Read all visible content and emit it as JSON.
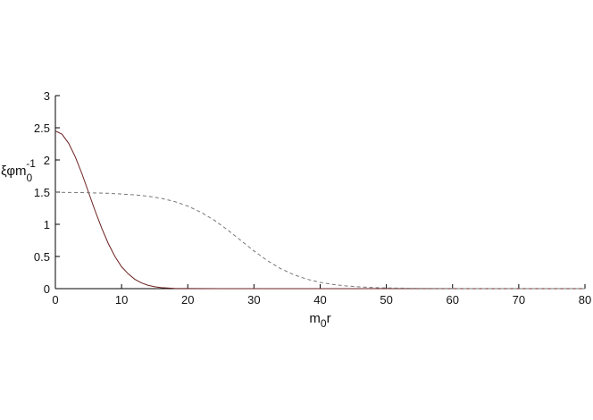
{
  "chart_data": {
    "type": "line",
    "xlabel": {
      "main": "m",
      "sub": "0",
      "tail": "r"
    },
    "ylabel": {
      "main": "ξφm",
      "sub": "0",
      "sup": "-1"
    },
    "xlim": [
      0,
      80
    ],
    "ylim": [
      0,
      3
    ],
    "xticks": [
      0,
      10,
      20,
      30,
      40,
      50,
      60,
      70,
      80
    ],
    "yticks": [
      0,
      0.5,
      1,
      1.5,
      2,
      2.5,
      3
    ],
    "series": [
      {
        "color": "#6b1f1f",
        "dash": false,
        "x": [
          0,
          1,
          2,
          3,
          4,
          5,
          6,
          7,
          8,
          9,
          10,
          11,
          12,
          13,
          14,
          15,
          16,
          18,
          20,
          25,
          30,
          40,
          50,
          60,
          70,
          80
        ],
        "values": [
          2.45,
          2.4,
          2.26,
          2.05,
          1.79,
          1.5,
          1.21,
          0.94,
          0.7,
          0.5,
          0.34,
          0.23,
          0.145,
          0.089,
          0.052,
          0.029,
          0.015,
          0.0043,
          0.001,
          0,
          0,
          0,
          0,
          0,
          0,
          0
        ]
      },
      {
        "color": "#777777",
        "dash": true,
        "x": [
          0,
          4,
          8,
          12,
          14,
          16,
          18,
          20,
          22,
          24,
          26,
          28,
          30,
          32,
          34,
          36,
          38,
          40,
          42,
          44,
          46,
          48,
          50,
          55,
          60,
          65,
          70,
          80
        ],
        "values": [
          1.497,
          1.493,
          1.482,
          1.458,
          1.436,
          1.403,
          1.354,
          1.283,
          1.187,
          1.063,
          0.914,
          0.75,
          0.586,
          0.437,
          0.313,
          0.217,
          0.147,
          0.097,
          0.064,
          0.042,
          0.027,
          0.017,
          0.011,
          0.004,
          0.001,
          0,
          0,
          0
        ]
      }
    ]
  }
}
